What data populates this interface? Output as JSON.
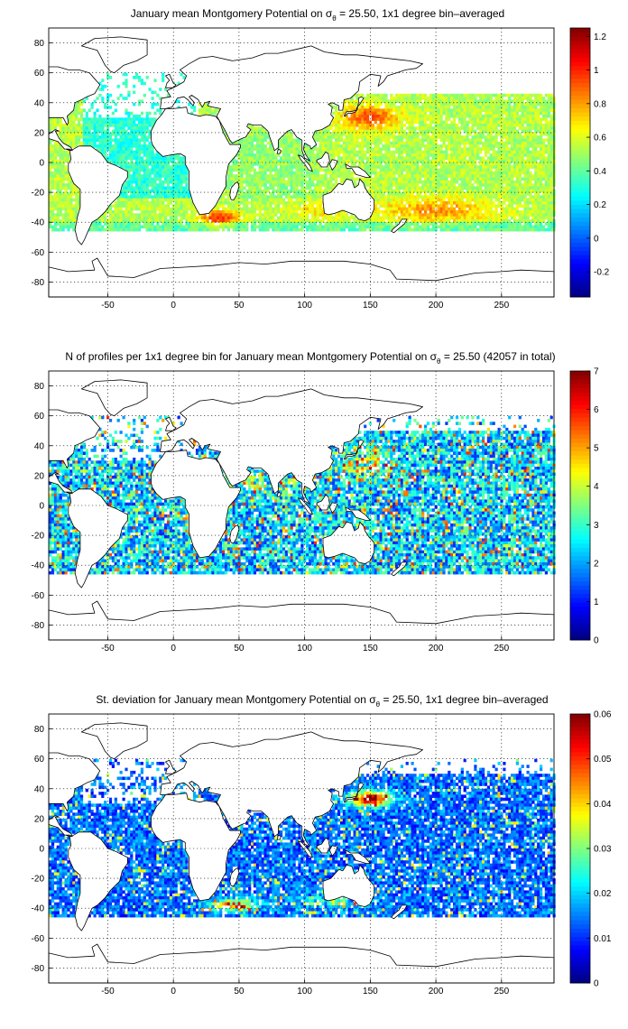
{
  "figure": {
    "xticks": [
      "-50",
      "0",
      "50",
      "100",
      "150",
      "200",
      "250"
    ],
    "yticks": [
      "80",
      "60",
      "40",
      "20",
      "0",
      "-20",
      "-40",
      "-60",
      "-80"
    ],
    "colormap": "jet"
  },
  "chart_data": [
    {
      "type": "heatmap",
      "title": {
        "pre": "January mean Montgomery Potential on σ",
        "sub": "θ",
        "post": " = 25.50, 1x1 degree bin–averaged"
      },
      "xlabel": "",
      "ylabel": "",
      "xlim": [
        -95,
        290
      ],
      "ylim": [
        -90,
        90
      ],
      "grid": true,
      "colorbar": {
        "range": [
          -0.35,
          1.25
        ],
        "ticks": [
          -0.2,
          0,
          0.2,
          0.4,
          0.6,
          0.8,
          1,
          1.2
        ],
        "labels": [
          "-0.2",
          "0",
          "0.2",
          "0.4",
          "0.6",
          "0.8",
          "1",
          "1.2"
        ]
      },
      "field": "montgomery_potential",
      "pattern_notes": "high (0.8-1.2) in Kuroshio region 130-175E 20-40N and Agulhas 20-55E 30-42S; low (0.2-0.3) in tropical Atlantic and Indian; 0.5-0.6 typical subtropics"
    },
    {
      "type": "heatmap",
      "title": {
        "pre": "N of profiles per 1x1 degree bin for January mean Montgomery Potential on σ",
        "sub": "θ",
        "post": " = 25.50 (42057 in total)"
      },
      "xlabel": "",
      "ylabel": "",
      "xlim": [
        -95,
        290
      ],
      "ylim": [
        -90,
        90
      ],
      "grid": true,
      "colorbar": {
        "range": [
          0,
          7
        ],
        "ticks": [
          0,
          1,
          2,
          3,
          4,
          5,
          6,
          7
        ],
        "labels": [
          "0",
          "1",
          "2",
          "3",
          "4",
          "5",
          "6",
          "7"
        ]
      },
      "field": "profile_count",
      "pattern_notes": "counts mostly 1-3; high (5-7) near Japan/Kuroshio, Arabian Sea and Bay of Bengal"
    },
    {
      "type": "heatmap",
      "title": {
        "pre": "St. deviation for January mean Montgomery Potential on σ",
        "sub": "θ",
        "post": " = 25.50, 1x1 degree bin–averaged"
      },
      "xlabel": "",
      "ylabel": "",
      "xlim": [
        -95,
        290
      ],
      "ylim": [
        -90,
        90
      ],
      "grid": true,
      "colorbar": {
        "range": [
          0,
          0.06
        ],
        "ticks": [
          0,
          0.01,
          0.02,
          0.03,
          0.04,
          0.05,
          0.06
        ],
        "labels": [
          "0",
          "0.01",
          "0.02",
          "0.03",
          "0.04",
          "0.05",
          "0.06"
        ]
      },
      "field": "std_dev",
      "pattern_notes": "mostly 0.005-0.02; high (0.04-0.06) in Kuroshio extension and along 40S in Agulhas region"
    }
  ]
}
